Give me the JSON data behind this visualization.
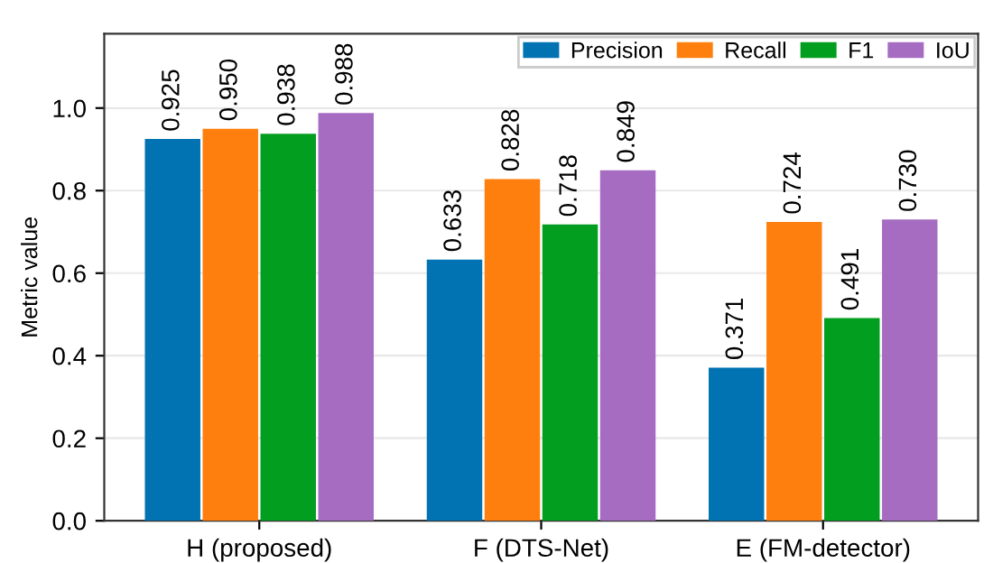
{
  "chart_data": {
    "type": "bar",
    "ylabel": "Metric value",
    "categories": [
      "H (proposed)",
      "F (DTS-Net)",
      "E (FM-detector)"
    ],
    "series": [
      {
        "name": "Precision",
        "color": "#0173b2",
        "values": [
          0.925,
          0.633,
          0.371
        ],
        "value_labels": [
          "0.925",
          "0.633",
          "0.371"
        ]
      },
      {
        "name": "Recall",
        "color": "#ff7f0e",
        "values": [
          0.95,
          0.828,
          0.724
        ],
        "value_labels": [
          "0.950",
          "0.828",
          "0.724"
        ]
      },
      {
        "name": "F1",
        "color": "#029e1f",
        "values": [
          0.938,
          0.718,
          0.491
        ],
        "value_labels": [
          "0.938",
          "0.718",
          "0.491"
        ]
      },
      {
        "name": "IoU",
        "color": "#a56cc1",
        "values": [
          0.988,
          0.849,
          0.73
        ],
        "value_labels": [
          "0.988",
          "0.849",
          "0.730"
        ]
      }
    ],
    "ylim": [
      0,
      1.18
    ],
    "yticks": [
      {
        "value": 0,
        "label": "0.0"
      },
      {
        "value": 0.2,
        "label": "0.2"
      },
      {
        "value": 0.4,
        "label": "0.4"
      },
      {
        "value": 0.6,
        "label": "0.6"
      },
      {
        "value": 0.8,
        "label": "0.8"
      },
      {
        "value": 1.0,
        "label": "1.0"
      }
    ],
    "grid": "y",
    "legend": "top right"
  }
}
